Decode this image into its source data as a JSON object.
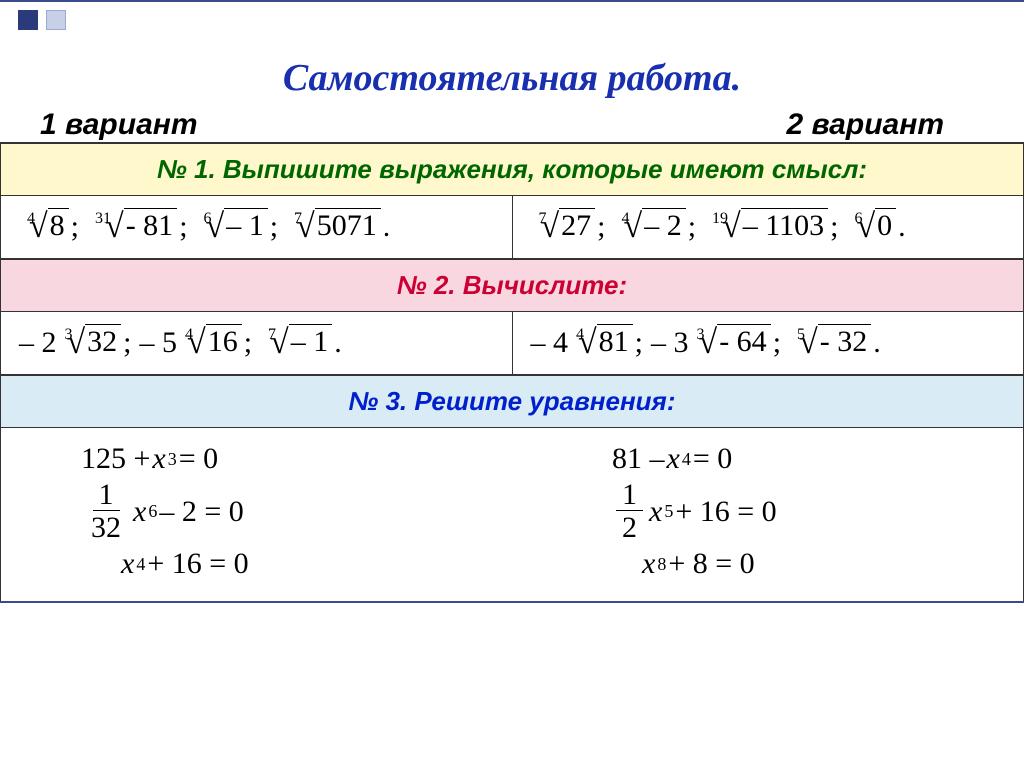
{
  "colors": {
    "title": "#1830b0",
    "task1_header_text": "#006600",
    "task1_header_bg": "#fff8cc",
    "task2_header_text": "#cc0033",
    "task2_header_bg": "#f8d7e0",
    "task3_header_text": "#0020cc",
    "task3_header_bg": "#d9ecf5",
    "border": "#333333",
    "accent_square_dark": "#2a3a7a",
    "accent_square_light": "#c8d0e8"
  },
  "title": "Самостоятельная  работа.",
  "variant1": "1 вариант",
  "variant2": "2 вариант",
  "task1": {
    "header": "№ 1.   Выпишите  выражения,  которые  имеют смысл:",
    "v1": [
      {
        "idx": "4",
        "rad": "8",
        "sep": ";"
      },
      {
        "idx": "31",
        "rad": "- 81",
        "sep": ";"
      },
      {
        "idx": "6",
        "rad": "– 1",
        "sep": ";"
      },
      {
        "idx": "7",
        "rad": "5071",
        "sep": "."
      }
    ],
    "v2": [
      {
        "idx": "7",
        "rad": "27",
        "sep": ";"
      },
      {
        "idx": "4",
        "rad": "– 2",
        "sep": ";"
      },
      {
        "idx": "19",
        "rad": "– 1103",
        "sep": ";"
      },
      {
        "idx": "6",
        "rad": "0",
        "sep": "."
      }
    ]
  },
  "task2": {
    "header": "№ 2.  Вычислите:",
    "v1": [
      {
        "coef": "– 2",
        "idx": "3",
        "rad": "32",
        "sep": ";"
      },
      {
        "coef": "– 5",
        "idx": "4",
        "rad": "16",
        "sep": ";"
      },
      {
        "coef": "",
        "idx": "7",
        "rad": "– 1",
        "sep": "."
      }
    ],
    "v2": [
      {
        "coef": "– 4",
        "idx": "4",
        "rad": "81",
        "sep": ";"
      },
      {
        "coef": "– 3",
        "idx": "3",
        "rad": "- 64",
        "sep": ";"
      },
      {
        "coef": "",
        "idx": "5",
        "rad": "- 32",
        "sep": "."
      }
    ]
  },
  "task3": {
    "header": "№ 3.   Решите  уравнения:",
    "v1": {
      "eq1": {
        "text_a": "125 + ",
        "var": "x",
        "pow": "3",
        "text_b": " = 0"
      },
      "eq2": {
        "num": "1",
        "den": "32",
        "var": "x",
        "pow": "6",
        "text_b": " – 2 = 0"
      },
      "eq3": {
        "var": "x",
        "pow": "4",
        "text_b": " + 16 = 0"
      }
    },
    "v2": {
      "eq1": {
        "text_a": "81 – ",
        "var": "x",
        "pow": "4",
        "text_b": " = 0"
      },
      "eq2": {
        "num": "1",
        "den": "2",
        "var": "x",
        "pow": "5",
        "text_b": " + 16 = 0"
      },
      "eq3": {
        "var": "x",
        "pow": "8",
        "text_b": " + 8 = 0"
      }
    }
  }
}
